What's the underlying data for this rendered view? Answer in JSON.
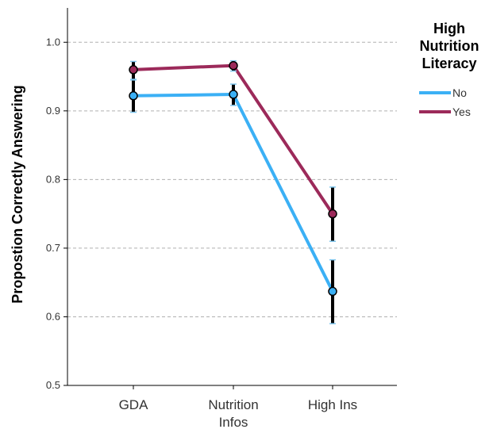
{
  "chart_data": {
    "type": "line",
    "title": "",
    "xlabel": "",
    "ylabel": "Propostion Correctly Answering",
    "categories": [
      [
        "GDA"
      ],
      [
        "Nutrition",
        "Infos"
      ],
      [
        "High Ins"
      ]
    ],
    "ylim": [
      0.5,
      1.05
    ],
    "yticks": [
      "0.5",
      "0.6",
      "0.7",
      "0.8",
      "0.9",
      "1.0"
    ],
    "grid": true,
    "legend": {
      "title": [
        "High",
        "Nutrition",
        "Literacy"
      ],
      "placement": "right"
    },
    "series": [
      {
        "name": "No",
        "color": "#3bb0f5",
        "values": [
          0.922,
          0.924,
          0.637
        ],
        "ci_low": [
          0.898,
          0.908,
          0.59
        ],
        "ci_high": [
          0.945,
          0.939,
          0.683
        ]
      },
      {
        "name": "Yes",
        "color": "#9c2a5a",
        "values": [
          0.96,
          0.966,
          0.75
        ],
        "ci_low": [
          0.946,
          0.958,
          0.71
        ],
        "ci_high": [
          0.972,
          0.973,
          0.789
        ]
      }
    ]
  }
}
